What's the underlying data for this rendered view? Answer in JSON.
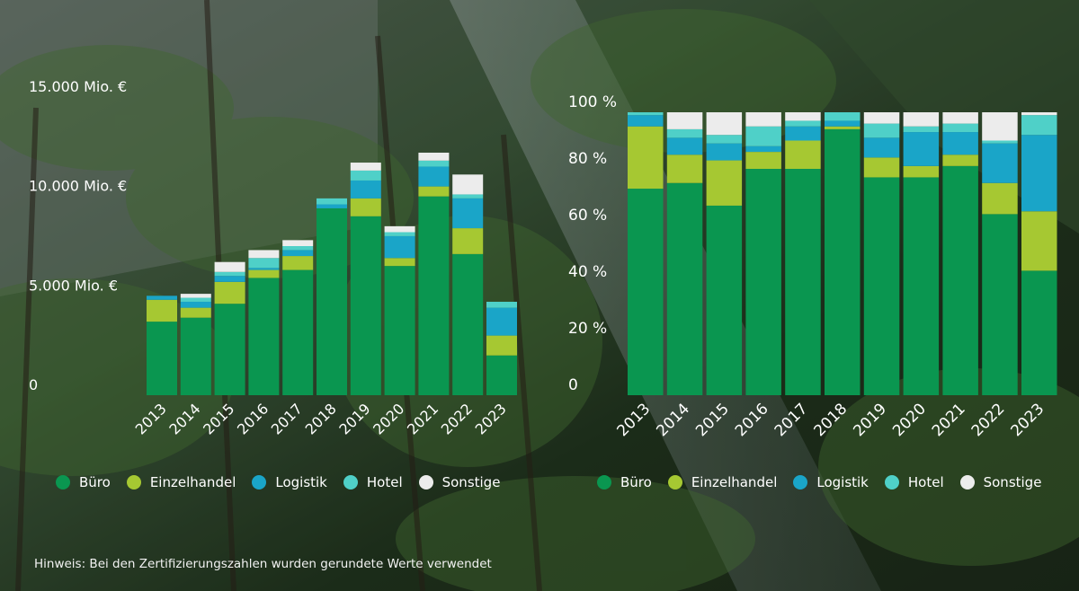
{
  "colors": {
    "Büro": "#0a9650",
    "Einzelhandel": "#a6c832",
    "Logistik": "#1aa5c8",
    "Hotel": "#4fd0c8",
    "Sonstige": "#ececec"
  },
  "legend": [
    "Büro",
    "Einzelhandel",
    "Logistik",
    "Hotel",
    "Sonstige"
  ],
  "note": "Hinweis: Bei den Zertifizierungszahlen wurden gerundete Werte verwendet",
  "chart_data": [
    {
      "type": "bar",
      "stacked": true,
      "categories": [
        "2013",
        "2014",
        "2015",
        "2016",
        "2017",
        "2018",
        "2019",
        "2020",
        "2021",
        "2022",
        "2023"
      ],
      "ylim": [
        0,
        15000
      ],
      "yticks": [
        "0",
        "5.000 Mio. €",
        "10.000 Mio. €",
        "15.000 Mio. €"
      ],
      "ytick_values": [
        0,
        5000,
        10000,
        15000
      ],
      "series": [
        {
          "name": "Büro",
          "values": [
            3700,
            3900,
            4600,
            5900,
            6300,
            9400,
            9000,
            6500,
            10000,
            7100,
            2000
          ]
        },
        {
          "name": "Einzelhandel",
          "values": [
            1100,
            500,
            1100,
            400,
            700,
            0,
            900,
            400,
            500,
            1300,
            1000
          ]
        },
        {
          "name": "Logistik",
          "values": [
            200,
            300,
            300,
            100,
            300,
            200,
            900,
            1100,
            1000,
            1500,
            1400
          ]
        },
        {
          "name": "Hotel",
          "values": [
            0,
            200,
            200,
            500,
            200,
            300,
            500,
            200,
            300,
            200,
            300
          ]
        },
        {
          "name": "Sonstige",
          "values": [
            0,
            200,
            500,
            400,
            300,
            0,
            400,
            300,
            400,
            1000,
            0
          ]
        }
      ]
    },
    {
      "type": "bar",
      "stacked": true,
      "categories": [
        "2013",
        "2014",
        "2015",
        "2016",
        "2017",
        "2018",
        "2019",
        "2020",
        "2021",
        "2022",
        "2023"
      ],
      "ylim": [
        0,
        100
      ],
      "yticks": [
        "0",
        "20 %",
        "40 %",
        "60 %",
        "80 %",
        "100 %"
      ],
      "ytick_values": [
        0,
        20,
        40,
        60,
        80,
        100
      ],
      "series": [
        {
          "name": "Büro",
          "values": [
            73,
            75,
            67,
            80,
            80,
            94,
            77,
            77,
            81,
            64,
            44
          ]
        },
        {
          "name": "Einzelhandel",
          "values": [
            22,
            10,
            16,
            6,
            10,
            1,
            7,
            4,
            4,
            11,
            21
          ]
        },
        {
          "name": "Logistik",
          "values": [
            4,
            6,
            6,
            2,
            5,
            2,
            7,
            12,
            8,
            14,
            27
          ]
        },
        {
          "name": "Hotel",
          "values": [
            1,
            3,
            3,
            7,
            2,
            3,
            5,
            2,
            3,
            1,
            7
          ]
        },
        {
          "name": "Sonstige",
          "values": [
            0,
            6,
            8,
            5,
            3,
            0,
            4,
            5,
            4,
            10,
            1
          ]
        }
      ]
    }
  ]
}
